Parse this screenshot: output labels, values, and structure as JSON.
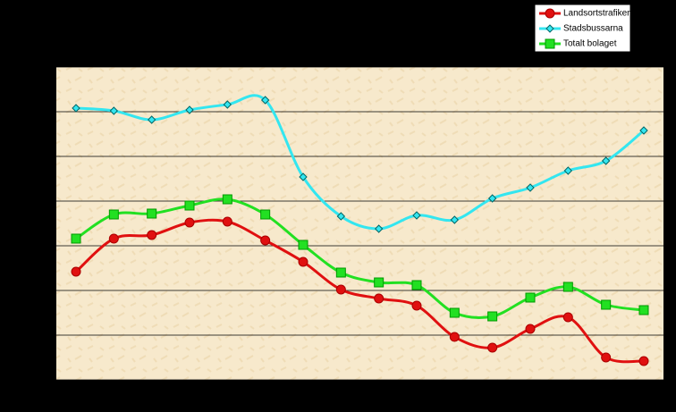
{
  "chart_data": {
    "type": "line",
    "categories": [
      null,
      null,
      null,
      null,
      null,
      null,
      null,
      null,
      null,
      null,
      null,
      null,
      null,
      null,
      null,
      null
    ],
    "series": [
      {
        "name": "Landsortstrafiken",
        "color": "#e01010",
        "marker": "circle",
        "values": [
          2.42,
          3.16,
          3.24,
          3.52,
          3.54,
          3.12,
          2.64,
          2.02,
          1.82,
          1.66,
          0.96,
          0.72,
          1.14,
          1.4,
          0.5,
          0.42
        ]
      },
      {
        "name": "Stadsbussarna",
        "color": "#33e6f0",
        "marker": "diamond",
        "values": [
          6.08,
          6.02,
          5.82,
          6.04,
          6.16,
          6.26,
          4.54,
          3.66,
          3.38,
          3.68,
          3.58,
          4.06,
          4.3,
          4.68,
          4.9,
          5.58
        ]
      },
      {
        "name": "Totalt bolaget",
        "color": "#22e022",
        "marker": "square",
        "values": [
          3.16,
          3.7,
          3.72,
          3.9,
          4.04,
          3.7,
          3.02,
          2.4,
          2.18,
          2.12,
          1.5,
          1.42,
          1.84,
          2.08,
          1.68,
          1.56
        ]
      }
    ],
    "ylim": [
      0,
      7
    ],
    "yticks": [
      0,
      1,
      2,
      3,
      4,
      5,
      6,
      7
    ],
    "grid": true,
    "legend": "top-right"
  }
}
